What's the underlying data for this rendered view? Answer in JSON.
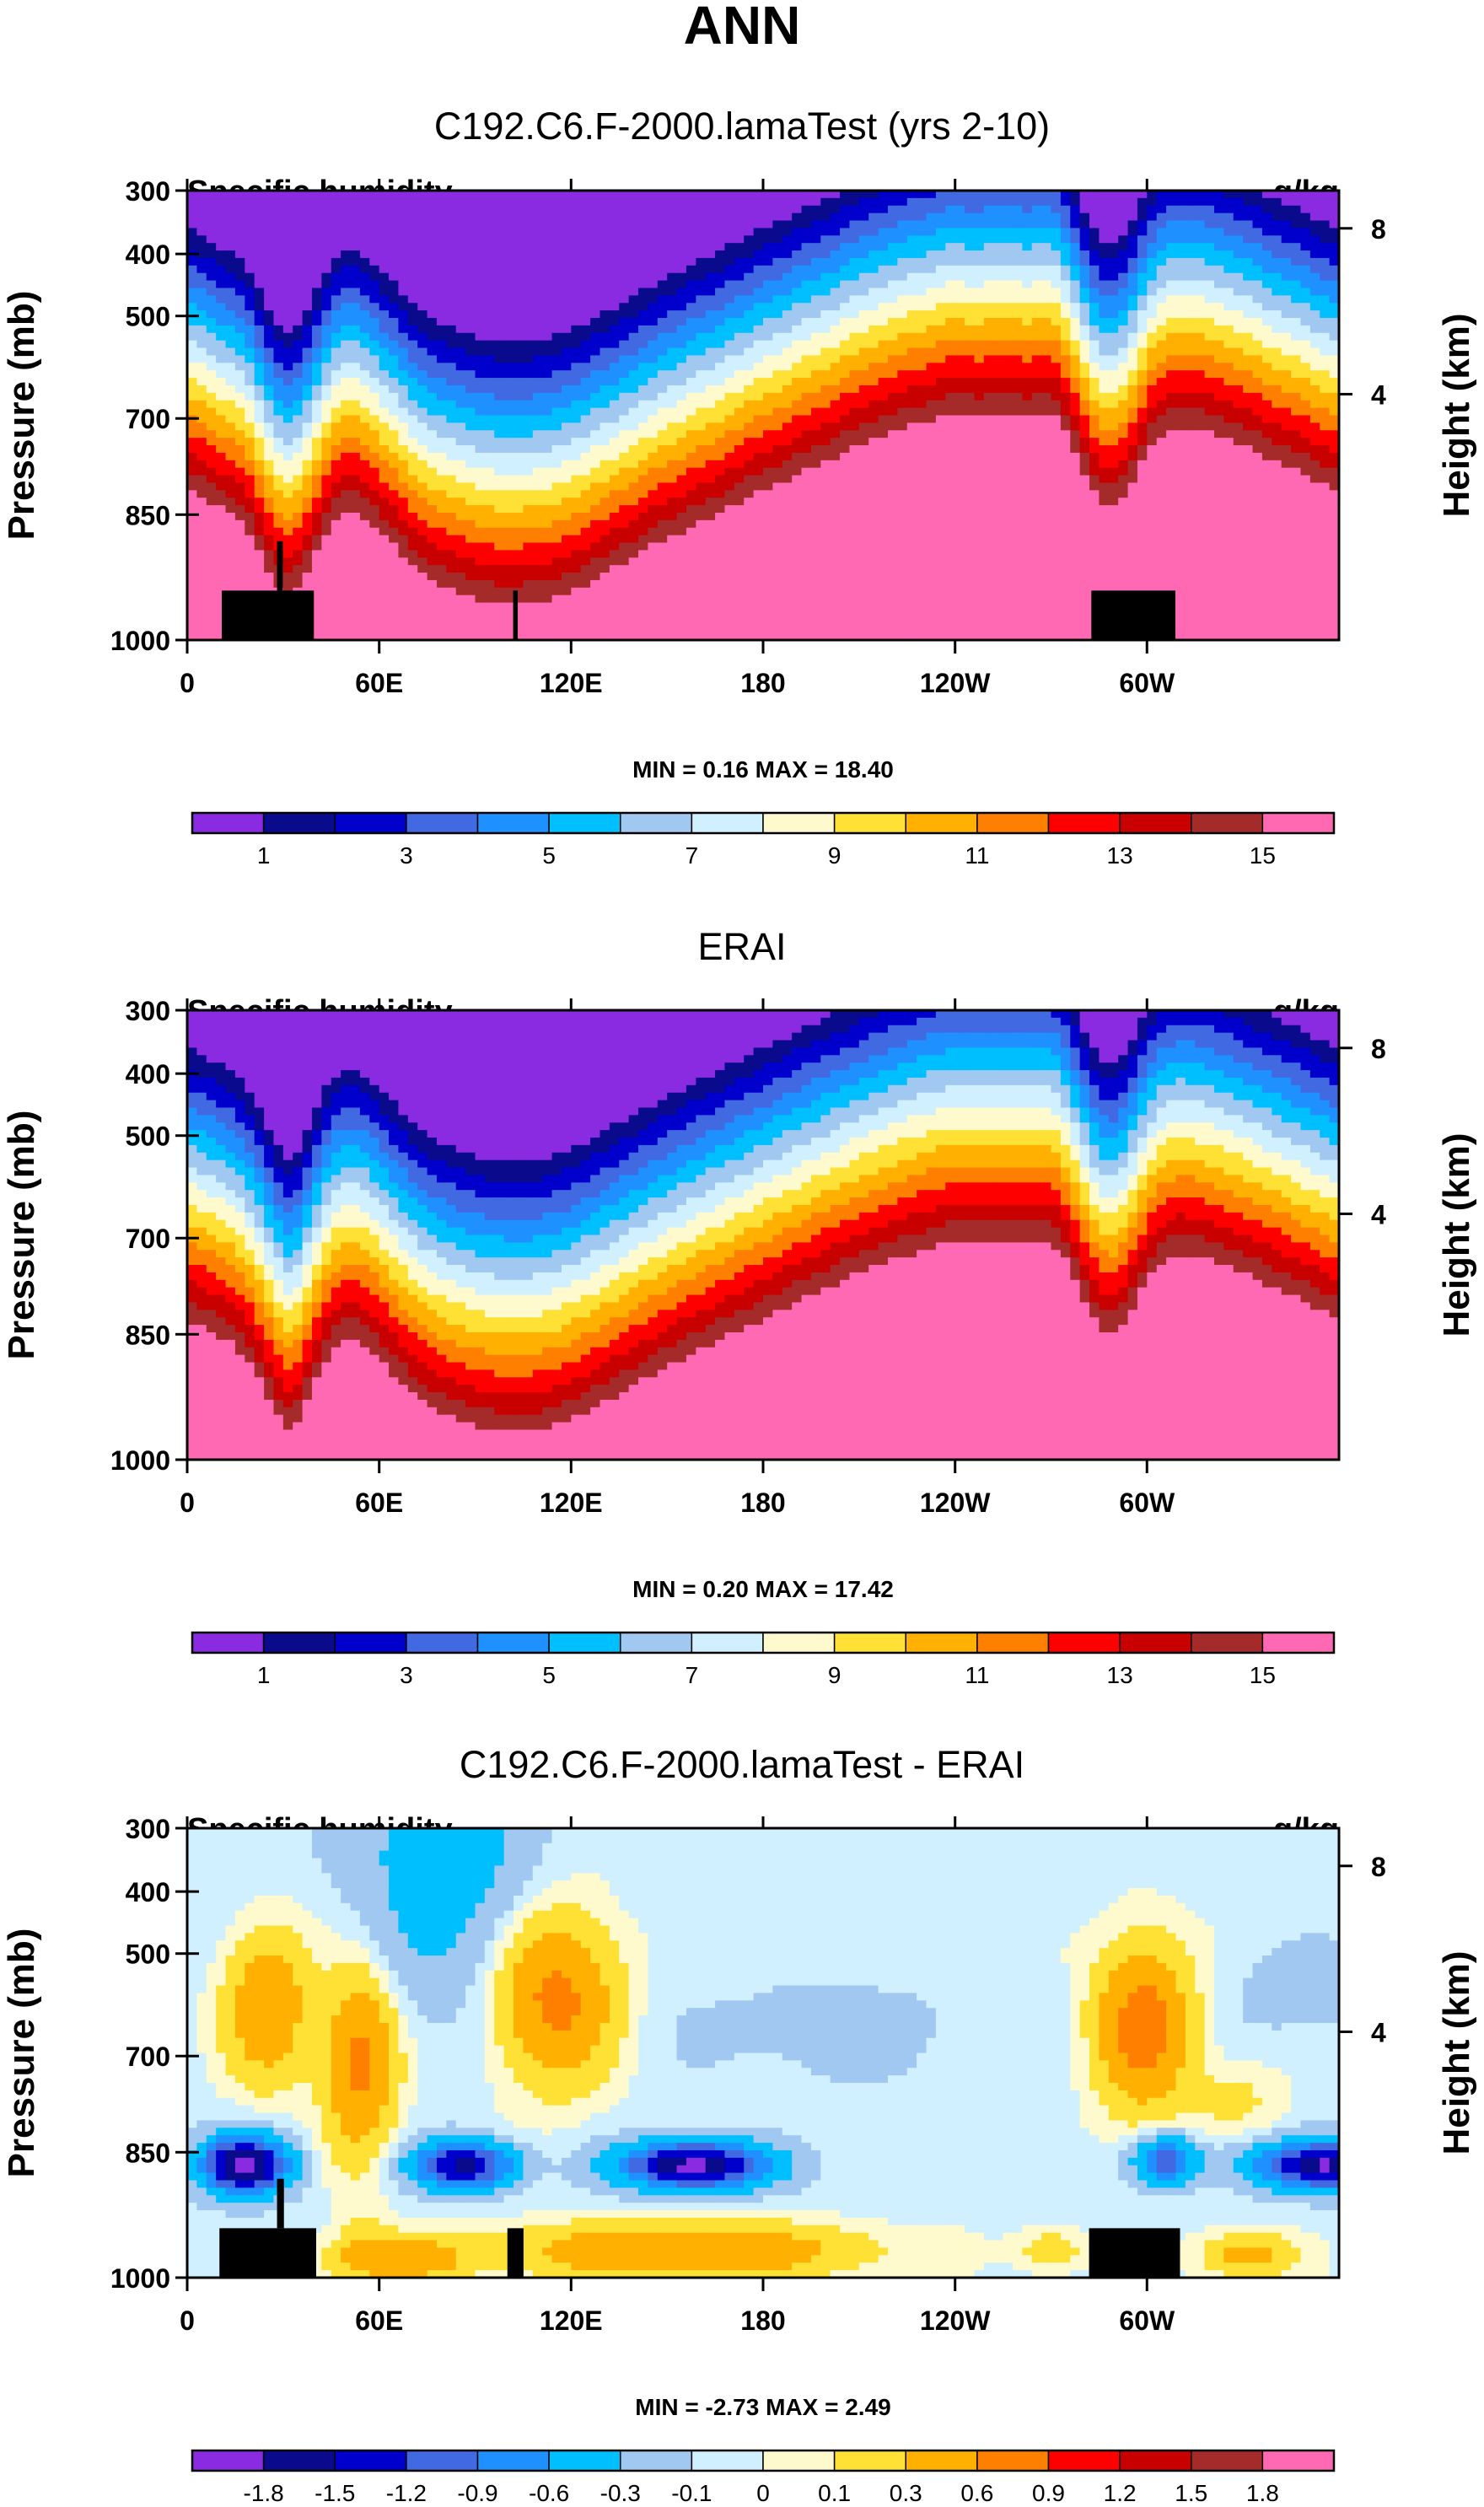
{
  "page_title": "ANN",
  "colors": {
    "seq": [
      "#8a2be2",
      "#0a0a8c",
      "#0000cd",
      "#4169e1",
      "#1e90ff",
      "#00bfff",
      "#a0c8f0",
      "#d0f0ff",
      "#fffacd",
      "#ffe135",
      "#ffb000",
      "#ff7f00",
      "#ff0000",
      "#c80000",
      "#a52a2a",
      "#ff69b4"
    ],
    "div": [
      "#8a2be2",
      "#0a0a8c",
      "#0000cd",
      "#4169e1",
      "#1e90ff",
      "#00bfff",
      "#a0c8f0",
      "#d0f0ff",
      "#fffacd",
      "#ffe135",
      "#ffb000",
      "#ff7f00",
      "#ff0000",
      "#c80000",
      "#a52a2a",
      "#ff69b4"
    ]
  },
  "chart_data": [
    {
      "type": "heatmap",
      "title": "C192.C6.F-2000.lamaTest (yrs 2-10)",
      "left_label": "Specific humidity",
      "right_label": "g/kg",
      "ylabel": "Pressure (mb)",
      "y2label": "Height (km)",
      "y_ticks": [
        "300",
        "400",
        "500",
        "700",
        "850",
        "1000"
      ],
      "y2_ticks": [
        "8",
        "4"
      ],
      "x_ticks": [
        "0",
        "60E",
        "120E",
        "180",
        "120W",
        "60W"
      ],
      "stats": "MIN =   0.16  MAX =  18.40",
      "colorbar_labels": [
        "1",
        "3",
        "5",
        "7",
        "9",
        "11",
        "13",
        "15"
      ],
      "levels": [
        1,
        2,
        3,
        4,
        5,
        6,
        7,
        8,
        9,
        10,
        11,
        12,
        13,
        14,
        15
      ],
      "min": 0.16,
      "max": 18.4
    },
    {
      "type": "heatmap",
      "title": "ERAI",
      "left_label": "Specific humidity",
      "right_label": "g/kg",
      "ylabel": "Pressure (mb)",
      "y2label": "Height (km)",
      "y_ticks": [
        "300",
        "400",
        "500",
        "700",
        "850",
        "1000"
      ],
      "y2_ticks": [
        "8",
        "4"
      ],
      "x_ticks": [
        "0",
        "60E",
        "120E",
        "180",
        "120W",
        "60W"
      ],
      "stats": "MIN =   0.20  MAX =  17.42",
      "colorbar_labels": [
        "1",
        "3",
        "5",
        "7",
        "9",
        "11",
        "13",
        "15"
      ],
      "levels": [
        1,
        2,
        3,
        4,
        5,
        6,
        7,
        8,
        9,
        10,
        11,
        12,
        13,
        14,
        15
      ],
      "min": 0.2,
      "max": 17.42
    },
    {
      "type": "heatmap",
      "title": "C192.C6.F-2000.lamaTest - ERAI",
      "left_label": "Specific humidity",
      "right_label": "g/kg",
      "ylabel": "Pressure (mb)",
      "y2label": "Height (km)",
      "y_ticks": [
        "300",
        "400",
        "500",
        "700",
        "850",
        "1000"
      ],
      "y2_ticks": [
        "8",
        "4"
      ],
      "x_ticks": [
        "0",
        "60E",
        "120E",
        "180",
        "120W",
        "60W"
      ],
      "stats": "MIN =  -2.73  MAX =   2.49",
      "colorbar_labels": [
        "-1.8",
        "-1.5",
        "-1.2",
        "-0.9",
        "-0.6",
        "-0.3",
        "-0.1",
        "0",
        "0.1",
        "0.3",
        "0.6",
        "0.9",
        "1.2",
        "1.5",
        "1.8"
      ],
      "levels": [
        -1.8,
        -1.5,
        -1.2,
        -0.9,
        -0.6,
        -0.3,
        -0.1,
        0,
        0.1,
        0.3,
        0.6,
        0.9,
        1.2,
        1.5,
        1.8
      ],
      "min": -2.73,
      "max": 2.49
    }
  ]
}
